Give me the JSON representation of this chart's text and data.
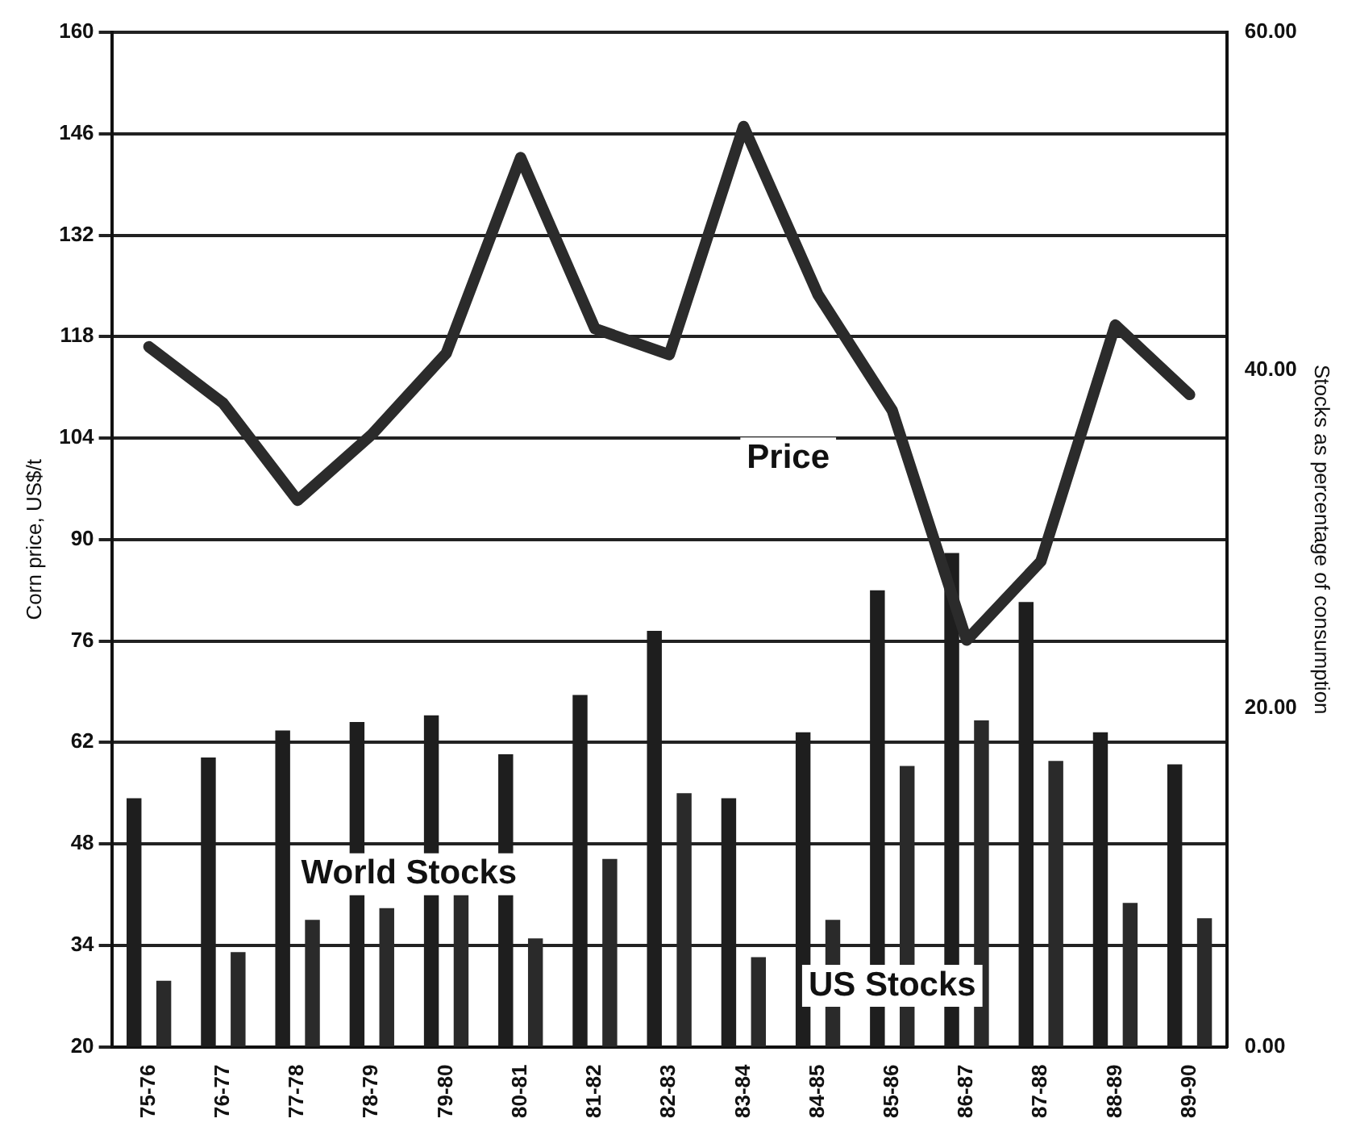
{
  "chart_data": {
    "type": "bar",
    "ylabel": "Corn price, US$/t",
    "y2label": "Stocks as percentage of consumption",
    "categories": [
      "75-76",
      "76-77",
      "77-78",
      "78-79",
      "79-80",
      "80-81",
      "81-82",
      "82-83",
      "83-84",
      "84-85",
      "85-86",
      "86-87",
      "87-88",
      "88-89",
      "89-90"
    ],
    "series": [
      {
        "name": "World Stocks",
        "axis": "y2",
        "color": "#1e1e1e",
        "values": [
          14.7,
          17.1,
          18.7,
          19.2,
          19.6,
          17.3,
          20.8,
          24.6,
          14.7,
          18.6,
          27.0,
          29.2,
          26.3,
          18.6,
          16.7
        ]
      },
      {
        "name": "US Stocks",
        "axis": "y2",
        "color": "#2a2a2a",
        "values": [
          3.9,
          5.6,
          7.5,
          8.2,
          9.1,
          6.4,
          11.1,
          15.0,
          5.3,
          7.5,
          16.6,
          19.3,
          16.9,
          8.5,
          7.6
        ]
      },
      {
        "name": "Price",
        "type": "line",
        "color": "#2b2b2b",
        "values": [
          116.6,
          108.8,
          95.4,
          104.5,
          115.7,
          142.7,
          119.1,
          115.5,
          147,
          123.8,
          107.8,
          76.1,
          87,
          119.6,
          110
        ]
      }
    ],
    "ylim": [
      20,
      160
    ],
    "yticks": [
      20,
      34,
      48,
      62,
      76,
      90,
      104,
      118,
      132,
      146,
      160
    ],
    "y2lim": [
      0,
      60
    ],
    "y2ticks": [
      {
        "value": 0,
        "label": "0.00"
      },
      {
        "value": 20,
        "label": "20.00"
      },
      {
        "value": 40,
        "label": "40.00"
      },
      {
        "value": 60,
        "label": "60.00"
      }
    ],
    "grid": "y",
    "legend": false,
    "marker": "none",
    "line_style": "solid"
  }
}
